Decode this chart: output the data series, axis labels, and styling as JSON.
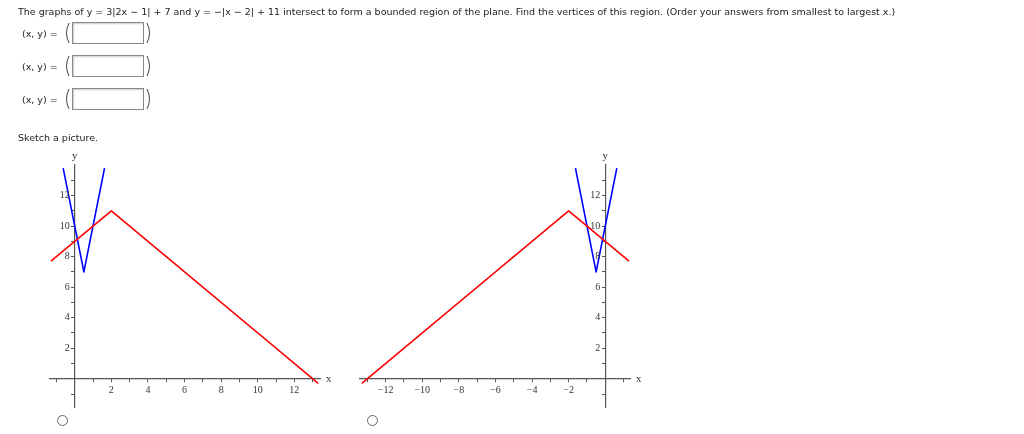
{
  "chart_data": [
    {
      "type": "line",
      "title": "The graphs of y = 3|2x − 1| + 7 and y = −|x − 2| + 11 intersect to form a bounded region of the plane. Find the vertices of this region. (Order your answers from smallest to largest x.)",
      "subtitle": "Sketch a picture.",
      "annotations": [
        "(x, y) =",
        "(x, y) =",
        "(x, y) ="
      ],
      "xlabel": "x",
      "ylabel": "y",
      "xlim": [
        -1.35,
        13.4
      ],
      "ylim": [
        -1.85,
        14
      ],
      "xticks": [
        {
          "value": -1,
          "label": null
        },
        {
          "value": 0,
          "label": null
        },
        {
          "value": 1,
          "label": null
        },
        2,
        {
          "value": 3,
          "label": null
        },
        4,
        {
          "value": 5,
          "label": null
        },
        6,
        {
          "value": 7,
          "label": null
        },
        8,
        {
          "value": 9,
          "label": null
        },
        10,
        {
          "value": 11,
          "label": null
        },
        12,
        {
          "value": 13,
          "label": null
        }
      ],
      "yticks": [
        {
          "value": -1,
          "label": null
        },
        {
          "value": 1,
          "label": null
        },
        2,
        {
          "value": 3,
          "label": null
        },
        4,
        {
          "value": 5,
          "label": null
        },
        6,
        {
          "value": 7,
          "label": null
        },
        8,
        {
          "value": 9,
          "label": null
        },
        10,
        {
          "value": 11,
          "label": null
        },
        12,
        {
          "value": 13,
          "label": null
        }
      ],
      "grid": false,
      "legend": false,
      "marker": "none",
      "line_style": "solid",
      "series": [
        {
          "color": "#ff0000",
          "x": [
            -1.3,
            2,
            13.3
          ],
          "values": [
            7.7,
            11,
            -0.3
          ]
        },
        {
          "color": "#0000ff",
          "x": [
            -0.63,
            0.5,
            1.63
          ],
          "values": [
            13.8,
            7,
            13.8
          ]
        }
      ]
    },
    {
      "type": "line",
      "xlabel": "x",
      "ylabel": "y",
      "xlim": [
        -13.4,
        1.35
      ],
      "ylim": [
        -1.85,
        14
      ],
      "xticks": [
        {
          "value": -13,
          "label": null
        },
        {
          "value": -12,
          "label": "−12"
        },
        {
          "value": -11,
          "label": null
        },
        {
          "value": -10,
          "label": "−10"
        },
        {
          "value": -9,
          "label": null
        },
        {
          "value": -8,
          "label": "−8"
        },
        {
          "value": -7,
          "label": null
        },
        {
          "value": -6,
          "label": "−6"
        },
        {
          "value": -5,
          "label": null
        },
        {
          "value": -4,
          "label": "−4"
        },
        {
          "value": -3,
          "label": null
        },
        {
          "value": -2,
          "label": "−2"
        },
        {
          "value": -1,
          "label": null
        },
        {
          "value": 0,
          "label": null
        },
        {
          "value": 1,
          "label": null
        }
      ],
      "yticks": [
        {
          "value": -1,
          "label": null
        },
        {
          "value": 1,
          "label": null
        },
        2,
        {
          "value": 3,
          "label": null
        },
        4,
        {
          "value": 5,
          "label": null
        },
        6,
        {
          "value": 7,
          "label": null
        },
        8,
        {
          "value": 9,
          "label": null
        },
        10,
        {
          "value": 11,
          "label": null
        },
        12,
        {
          "value": 13,
          "label": null
        }
      ],
      "grid": false,
      "legend": false,
      "marker": "none",
      "line_style": "solid",
      "series": [
        {
          "color": "#ff0000",
          "x": [
            -13.3,
            -2,
            1.3
          ],
          "values": [
            -0.3,
            11,
            7.7
          ]
        },
        {
          "color": "#0000ff",
          "x": [
            -1.63,
            -0.5,
            0.63
          ],
          "values": [
            13.8,
            7,
            13.8
          ]
        }
      ]
    }
  ]
}
